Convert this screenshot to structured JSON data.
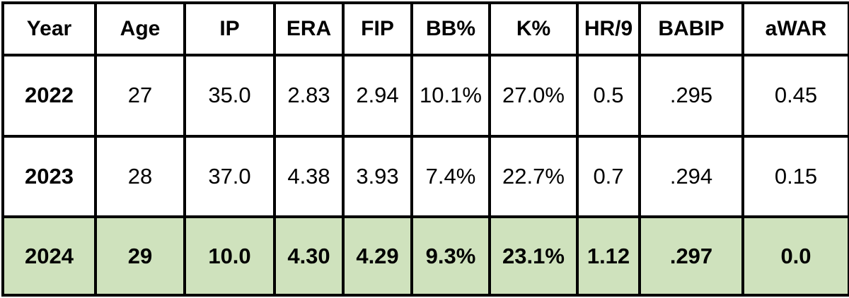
{
  "table": {
    "headers": [
      "Year",
      "Age",
      "IP",
      "ERA",
      "FIP",
      "BB%",
      "K%",
      "HR/9",
      "BABIP",
      "aWAR"
    ],
    "rows": [
      [
        "2022",
        "27",
        "35.0",
        "2.83",
        "2.94",
        "10.1%",
        "27.0%",
        "0.5",
        ".295",
        "0.45"
      ],
      [
        "2023",
        "28",
        "37.0",
        "4.38",
        "3.93",
        "7.4%",
        "22.7%",
        "0.7",
        ".294",
        "0.15"
      ],
      [
        "2024",
        "29",
        "10.0",
        "4.30",
        "4.29",
        "9.3%",
        "23.1%",
        "1.12",
        ".297",
        "0.0"
      ]
    ],
    "highlight_row_color": "#cfe2bd",
    "border_color": "#000000"
  }
}
